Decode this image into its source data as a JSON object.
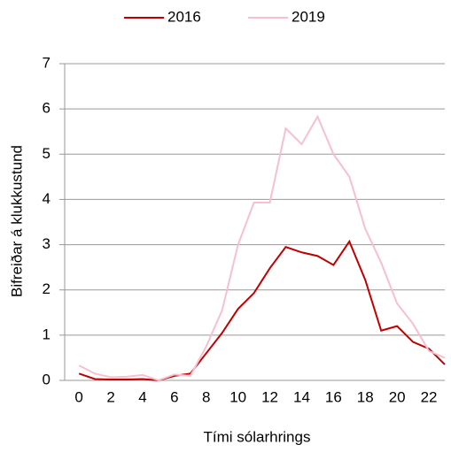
{
  "chart_data": {
    "type": "line",
    "x": [
      0,
      1,
      2,
      3,
      4,
      5,
      6,
      7,
      8,
      9,
      10,
      11,
      12,
      13,
      14,
      15,
      16,
      17,
      18,
      19,
      20,
      21,
      22,
      23
    ],
    "series": [
      {
        "name": "2016",
        "color": "#c00000",
        "values": [
          0.15,
          0.03,
          0.02,
          0.02,
          0.03,
          0.0,
          0.1,
          0.15,
          0.6,
          1.05,
          1.58,
          1.93,
          2.48,
          2.95,
          2.83,
          2.75,
          2.55,
          3.07,
          2.22,
          1.1,
          1.2,
          0.85,
          0.7,
          0.35
        ]
      },
      {
        "name": "2019",
        "color": "#f7bfd0",
        "values": [
          0.33,
          0.15,
          0.07,
          0.08,
          0.12,
          0.0,
          0.13,
          0.1,
          0.75,
          1.55,
          3.0,
          3.93,
          3.93,
          5.57,
          5.22,
          5.83,
          5.0,
          4.5,
          3.35,
          2.6,
          1.7,
          1.25,
          0.65,
          0.5
        ]
      }
    ],
    "xlabel": "Tími sólarhrings",
    "ylabel": "Bifreiðar á klukkustund",
    "xlim": [
      -0.9,
      23
    ],
    "xticks": [
      0,
      2,
      4,
      6,
      8,
      10,
      12,
      14,
      16,
      18,
      20,
      22
    ],
    "ylim": [
      0,
      7
    ],
    "yticks": [
      0,
      1,
      2,
      3,
      4,
      5,
      6,
      7
    ],
    "grid": true,
    "legend": "top"
  }
}
